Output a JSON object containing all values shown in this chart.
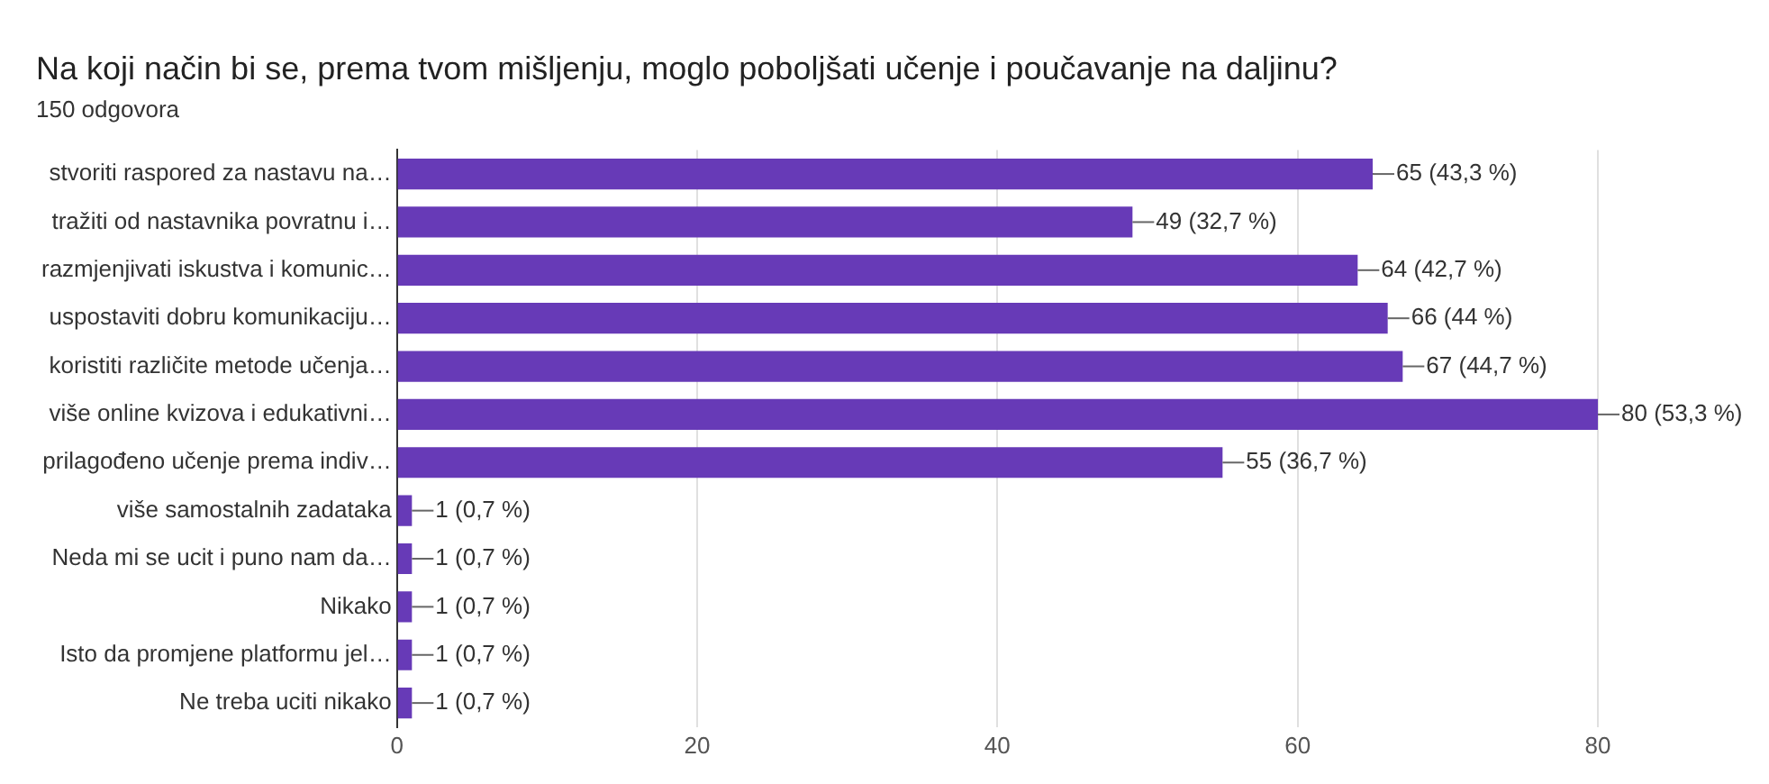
{
  "chart_data": {
    "type": "bar",
    "orientation": "horizontal",
    "title": "Na koji način bi se, prema tvom mišljenju, moglo poboljšati učenje i poučavanje na daljinu?",
    "subtitle": "150 odgovora",
    "categories": [
      "stvoriti raspored za nastavu na…",
      "tražiti od nastavnika povratnu i…",
      "razmjenjivati iskustva i komunic…",
      "uspostaviti dobru komunikaciju…",
      "koristiti različite metode učenja…",
      "više online kvizova i edukativni…",
      "prilagođeno učenje prema indiv…",
      "više samostalnih zadataka",
      "Neda mi se ucit i puno nam da…",
      "Nikako",
      "Isto da promjene platformu jel…",
      "Ne treba uciti nikako"
    ],
    "values": [
      65,
      49,
      64,
      66,
      67,
      80,
      55,
      1,
      1,
      1,
      1,
      1
    ],
    "value_labels": [
      "65 (43,3 %)",
      "49 (32,7 %)",
      "64 (42,7 %)",
      "66 (44 %)",
      "67 (44,7 %)",
      "80 (53,3 %)",
      "55 (36,7 %)",
      "1 (0,7 %)",
      "1 (0,7 %)",
      "1 (0,7 %)",
      "1 (0,7 %)",
      "1 (0,7 %)"
    ],
    "color": "#673ab7",
    "xlim": [
      0,
      80
    ],
    "xticks": [
      0,
      20,
      40,
      60,
      80
    ],
    "grid": "x",
    "legend": false
  }
}
